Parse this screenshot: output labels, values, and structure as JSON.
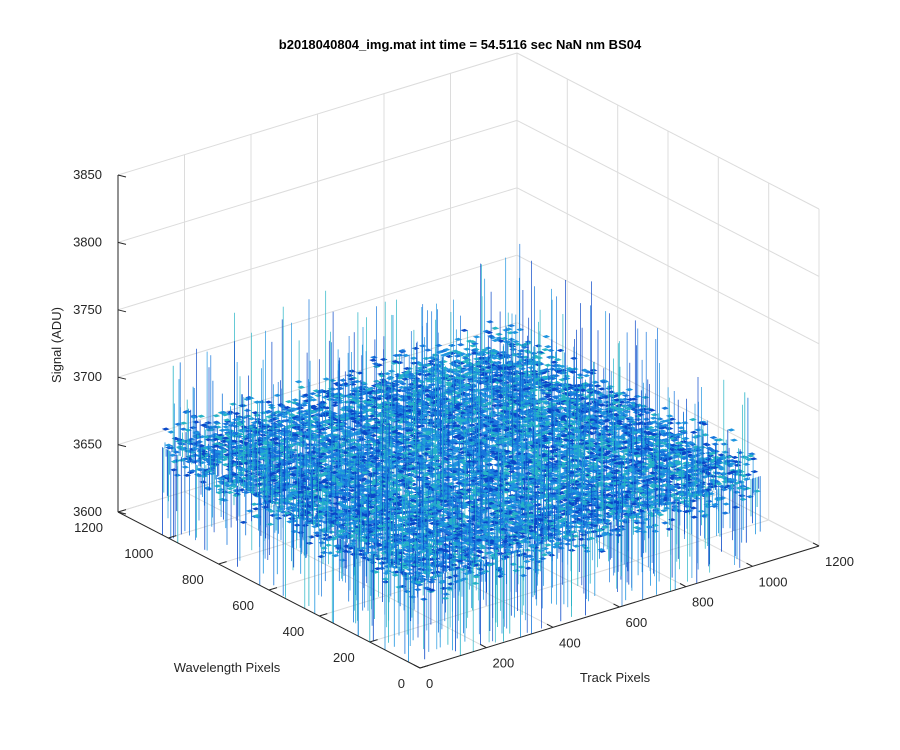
{
  "chart_data": {
    "type": "surface",
    "title": "b2018040804_img.mat int time = 54.5116 sec  NaN nm BS04",
    "xlabel": "Track Pixels",
    "ylabel": "Wavelength Pixels",
    "zlabel": "Signal (ADU)",
    "xlim": [
      0,
      1200
    ],
    "ylim": [
      0,
      1200
    ],
    "zlim": [
      3600,
      3850
    ],
    "x_ticks": [
      "0",
      "200",
      "400",
      "600",
      "800",
      "1000",
      "1200"
    ],
    "y_ticks": [
      "0",
      "200",
      "400",
      "600",
      "800",
      "1000",
      "1200"
    ],
    "z_ticks": [
      "3600",
      "3650",
      "3700",
      "3750",
      "3800",
      "3850"
    ],
    "data_extent": {
      "x": [
        1,
        1024
      ],
      "y": [
        1,
        1024
      ]
    },
    "signal_mean": 3665,
    "signal_noise_range": [
      3620,
      3720
    ],
    "grid": true,
    "colormap": [
      "#0a48c8",
      "#1877dc",
      "#1f95e0",
      "#26b3c6"
    ]
  }
}
